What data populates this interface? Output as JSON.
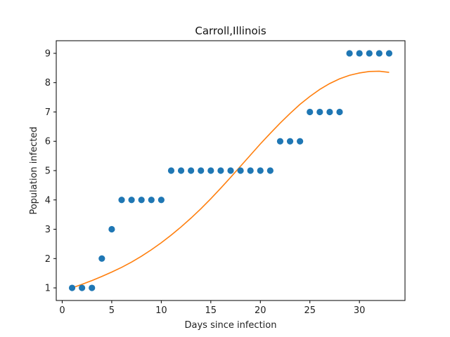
{
  "chart_data": {
    "type": "scatter",
    "title": "Carroll,Illinois",
    "xlabel": "Days since infection",
    "ylabel": "Population infected",
    "xlim": [
      -0.6,
      34.6
    ],
    "ylim": [
      0.57,
      9.43
    ],
    "xticks": [
      0,
      5,
      10,
      15,
      20,
      25,
      30
    ],
    "yticks": [
      1,
      2,
      3,
      4,
      5,
      6,
      7,
      8,
      9
    ],
    "grid": false,
    "series": [
      {
        "kind": "points",
        "color": "#1f77b4",
        "x": [
          1,
          2,
          3,
          4,
          5,
          6,
          7,
          8,
          9,
          10,
          11,
          12,
          13,
          14,
          15,
          16,
          17,
          18,
          19,
          20,
          21,
          22,
          23,
          24,
          25,
          26,
          27,
          28,
          29,
          30,
          31,
          32,
          33
        ],
        "y": [
          1,
          1,
          1,
          2,
          3,
          4,
          4,
          4,
          4,
          4,
          5,
          5,
          5,
          5,
          5,
          5,
          5,
          5,
          5,
          5,
          5,
          6,
          6,
          6,
          7,
          7,
          7,
          7,
          9,
          9,
          9,
          9,
          9
        ]
      },
      {
        "kind": "line",
        "color": "#ff7f0e",
        "x": [
          1,
          2,
          3,
          4,
          5,
          6,
          7,
          8,
          9,
          10,
          11,
          12,
          13,
          14,
          15,
          16,
          17,
          18,
          19,
          20,
          21,
          22,
          23,
          24,
          25,
          26,
          27,
          28,
          29,
          30,
          31,
          32,
          33
        ],
        "y": [
          1.0,
          1.12,
          1.25,
          1.39,
          1.54,
          1.7,
          1.88,
          2.08,
          2.3,
          2.54,
          2.8,
          3.08,
          3.38,
          3.7,
          4.04,
          4.4,
          4.77,
          5.15,
          5.53,
          5.91,
          6.27,
          6.62,
          6.95,
          7.26,
          7.53,
          7.77,
          7.97,
          8.13,
          8.25,
          8.33,
          8.38,
          8.39,
          8.35
        ]
      }
    ]
  }
}
